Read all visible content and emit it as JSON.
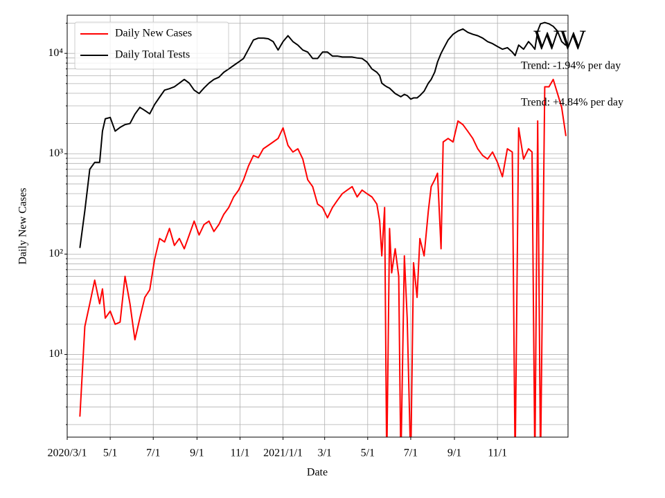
{
  "chart_data": {
    "type": "line",
    "title": "WW",
    "annotations": [
      "Trend: -1.94% per day",
      "Trend: +4.84% per day"
    ],
    "x_label": "Date",
    "y_label": "Daily New Cases",
    "log_scale": true,
    "grid": true,
    "legend": "upper left",
    "xlim": [
      "2020-03-01",
      "2022-02-09"
    ],
    "xticks": [
      {
        "value": "2020-03-01",
        "label": "2020/3/1"
      },
      {
        "value": "2020-05-01",
        "label": "5/1"
      },
      {
        "value": "2020-07-01",
        "label": "7/1"
      },
      {
        "value": "2020-09-01",
        "label": "9/1"
      },
      {
        "value": "2020-11-01",
        "label": "11/1"
      },
      {
        "value": "2021-01-01",
        "label": "2021/1/1"
      },
      {
        "value": "2021-03-01",
        "label": "3/1"
      },
      {
        "value": "2021-05-01",
        "label": "5/1"
      },
      {
        "value": "2021-07-01",
        "label": "7/1"
      },
      {
        "value": "2021-09-01",
        "label": "9/1"
      },
      {
        "value": "2021-11-01",
        "label": "11/1"
      }
    ],
    "ylim": [
      1.5,
      24000
    ],
    "yticks": [
      {
        "value": 10,
        "label": "10¹"
      },
      {
        "value": 100,
        "label": "10²"
      },
      {
        "value": 1000,
        "label": "10³"
      },
      {
        "value": 10000,
        "label": "10⁴"
      }
    ],
    "x": [
      "2020-03-19",
      "2020-03-26",
      "2020-04-02",
      "2020-04-09",
      "2020-04-16",
      "2020-04-20",
      "2020-04-24",
      "2020-05-01",
      "2020-05-08",
      "2020-05-15",
      "2020-05-22",
      "2020-05-29",
      "2020-06-05",
      "2020-06-12",
      "2020-06-19",
      "2020-06-26",
      "2020-07-03",
      "2020-07-10",
      "2020-07-17",
      "2020-07-24",
      "2020-07-31",
      "2020-08-07",
      "2020-08-14",
      "2020-08-21",
      "2020-08-28",
      "2020-09-04",
      "2020-09-11",
      "2020-09-18",
      "2020-09-25",
      "2020-10-02",
      "2020-10-09",
      "2020-10-16",
      "2020-10-23",
      "2020-10-30",
      "2020-11-06",
      "2020-11-13",
      "2020-11-20",
      "2020-11-27",
      "2020-12-04",
      "2020-12-11",
      "2020-12-18",
      "2020-12-25",
      "2021-01-01",
      "2021-01-08",
      "2021-01-15",
      "2021-01-22",
      "2021-01-29",
      "2021-02-05",
      "2021-02-12",
      "2021-02-19",
      "2021-02-26",
      "2021-03-05",
      "2021-03-12",
      "2021-03-19",
      "2021-03-26",
      "2021-04-02",
      "2021-04-09",
      "2021-04-16",
      "2021-04-23",
      "2021-04-30",
      "2021-05-07",
      "2021-05-14",
      "2021-05-18",
      "2021-05-21",
      "2021-05-25",
      "2021-05-28",
      "2021-06-01",
      "2021-06-04",
      "2021-06-09",
      "2021-06-14",
      "2021-06-17",
      "2021-06-22",
      "2021-06-26",
      "2021-07-01",
      "2021-07-05",
      "2021-07-10",
      "2021-07-14",
      "2021-07-20",
      "2021-07-26",
      "2021-07-30",
      "2021-08-04",
      "2021-08-08",
      "2021-08-13",
      "2021-08-16",
      "2021-08-23",
      "2021-08-30",
      "2021-09-06",
      "2021-09-13",
      "2021-09-20",
      "2021-09-27",
      "2021-10-04",
      "2021-10-11",
      "2021-10-18",
      "2021-10-25",
      "2021-11-01",
      "2021-11-08",
      "2021-11-15",
      "2021-11-22",
      "2021-11-26",
      "2021-12-01",
      "2021-12-08",
      "2021-12-15",
      "2021-12-20",
      "2021-12-24",
      "2021-12-28",
      "2022-01-01",
      "2022-01-07",
      "2022-01-13",
      "2022-01-19",
      "2022-01-25",
      "2022-01-31",
      "2022-02-06"
    ],
    "series": [
      {
        "name": "Daily New Cases",
        "color": "#ff0000",
        "values": [
          2.4,
          19,
          32,
          55,
          32,
          45,
          23,
          27,
          20,
          21,
          60,
          32,
          14,
          23,
          37,
          44,
          89,
          143,
          132,
          180,
          122,
          143,
          113,
          155,
          213,
          155,
          197,
          213,
          168,
          197,
          249,
          291,
          371,
          434,
          550,
          755,
          960,
          915,
          1120,
          1210,
          1310,
          1420,
          1810,
          1210,
          1040,
          1120,
          885,
          550,
          470,
          315,
          291,
          230,
          291,
          343,
          400,
          434,
          470,
          371,
          434,
          400,
          371,
          315,
          213,
          96,
          291,
          0,
          180,
          65,
          113,
          60,
          0,
          96,
          23,
          0,
          82,
          37,
          143,
          96,
          270,
          470,
          550,
          640,
          113,
          1310,
          1420,
          1310,
          2120,
          1950,
          1670,
          1420,
          1120,
          960,
          885,
          1040,
          820,
          590,
          1120,
          1040,
          0,
          1810,
          885,
          1120,
          1040,
          0,
          2120,
          0,
          4640,
          4640,
          5500,
          4000,
          2900,
          1500
        ]
      },
      {
        "name": "Daily Total Tests",
        "color": "#000000",
        "values": [
          115,
          270,
          700,
          820,
          820,
          1680,
          2230,
          2300,
          1680,
          1830,
          1950,
          2000,
          2480,
          2900,
          2700,
          2500,
          3100,
          3660,
          4300,
          4450,
          4650,
          5050,
          5500,
          5050,
          4300,
          3980,
          4520,
          5050,
          5500,
          5780,
          6480,
          7000,
          7580,
          8200,
          8900,
          11000,
          13600,
          14200,
          14200,
          14000,
          13100,
          10800,
          13100,
          15000,
          13100,
          12100,
          10800,
          10300,
          8900,
          8900,
          10300,
          10300,
          9400,
          9400,
          9200,
          9200,
          9200,
          9000,
          8900,
          8200,
          7000,
          6480,
          6000,
          5050,
          4800,
          4650,
          4500,
          4300,
          3980,
          3800,
          3700,
          3900,
          3800,
          3500,
          3600,
          3600,
          3800,
          4200,
          5050,
          5500,
          6500,
          8200,
          10000,
          11000,
          13600,
          15500,
          16700,
          17500,
          16200,
          15500,
          15000,
          14200,
          13100,
          12500,
          11700,
          11000,
          11400,
          10300,
          9500,
          12100,
          11000,
          13100,
          12000,
          11000,
          16700,
          19700,
          20300,
          19700,
          18600,
          16700,
          13100,
          12000
        ]
      }
    ]
  }
}
